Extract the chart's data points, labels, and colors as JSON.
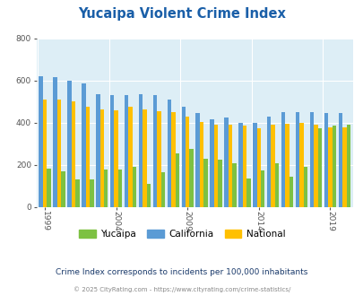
{
  "title": "Yucaipa Violent Crime Index",
  "years": [
    1999,
    2000,
    2001,
    2002,
    2003,
    2004,
    2005,
    2006,
    2007,
    2008,
    2009,
    2010,
    2011,
    2012,
    2013,
    2014,
    2015,
    2016,
    2017,
    2018,
    2019,
    2020
  ],
  "yucaipa": [
    183,
    170,
    130,
    130,
    178,
    178,
    190,
    110,
    165,
    255,
    275,
    230,
    225,
    210,
    135,
    175,
    210,
    145,
    190,
    375,
    385,
    390
  ],
  "california": [
    620,
    615,
    600,
    585,
    535,
    530,
    530,
    535,
    530,
    510,
    475,
    445,
    415,
    425,
    400,
    400,
    430,
    450,
    450,
    450,
    445,
    445
  ],
  "national": [
    510,
    510,
    500,
    475,
    465,
    460,
    475,
    465,
    455,
    450,
    430,
    405,
    390,
    390,
    385,
    375,
    390,
    395,
    400,
    390,
    380,
    380
  ],
  "yucaipa_color": "#7dc142",
  "california_color": "#5b9bd5",
  "national_color": "#ffc000",
  "plot_bg": "#ddeef6",
  "ylim": [
    0,
    800
  ],
  "yticks": [
    0,
    200,
    400,
    600,
    800
  ],
  "xtick_years": [
    1999,
    2004,
    2009,
    2014,
    2019
  ],
  "legend_labels": [
    "Yucaipa",
    "California",
    "National"
  ],
  "subtitle": "Crime Index corresponds to incidents per 100,000 inhabitants",
  "footer": "© 2025 CityRating.com - https://www.cityrating.com/crime-statistics/",
  "title_color": "#1a5fa8",
  "subtitle_color": "#1a3a6b",
  "footer_color": "#888888"
}
